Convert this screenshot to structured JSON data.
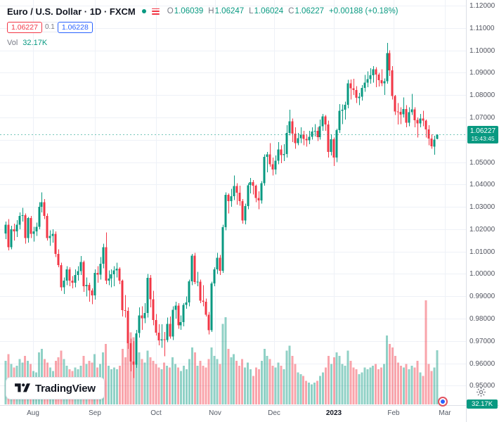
{
  "legend": {
    "title": "Euro / U.S. Dollar · 1D · FXCM",
    "ohlc": {
      "open_label": "O",
      "open": "1.06039",
      "high_label": "H",
      "high": "1.06247",
      "low_label": "L",
      "low": "1.06024",
      "close_label": "C",
      "close": "1.06227",
      "change": "+0.00188 (+0.18%)"
    },
    "bid": "1.06227",
    "spread": "0.1",
    "ask": "1.06228",
    "volume_label": "Vol",
    "volume_value": "32.17K"
  },
  "footer": {
    "brand": "TradingView"
  },
  "colors": {
    "up": "#089981",
    "down": "#f23645",
    "vol_up": "rgba(8,153,129,0.45)",
    "vol_down": "rgba(242,54,69,0.45)",
    "grid": "#eef1f7",
    "axis_text": "#50535e",
    "accent_blue": "#2962ff",
    "accent_red": "#f23645"
  },
  "chart_data": {
    "type": "candlestick",
    "title": "Euro / U.S. Dollar",
    "interval": "1D",
    "exchange": "FXCM",
    "legend_position": "top-left",
    "grid": true,
    "scale": {
      "top": 1.1225,
      "bottom": 0.9426
    },
    "vol_max": 62,
    "last_price": "1.06227",
    "countdown": "15:43:45",
    "volume_axis_value": "32.17K",
    "price_axis_labels": [
      "1.12000",
      "1.11000",
      "1.10000",
      "1.09000",
      "1.08000",
      "1.07000",
      "1.05000",
      "1.04000",
      "1.03000",
      "1.02000",
      "1.01000",
      "1.00000",
      "0.99000",
      "0.98000",
      "0.97000",
      "0.96000",
      "0.95000"
    ],
    "time_axis_ticks": [
      {
        "label": "Aug",
        "pos": 9.85
      },
      {
        "label": "Sep",
        "pos": 32.1
      },
      {
        "label": "Oct",
        "pos": 54.0
      },
      {
        "label": "Nov",
        "pos": 75.3
      },
      {
        "label": "Dec",
        "pos": 96.5
      },
      {
        "label": "2023",
        "pos": 117.9,
        "year": true
      },
      {
        "label": "Feb",
        "pos": 139.4
      },
      {
        "label": "Mar",
        "pos": 157.8
      }
    ],
    "candles": [
      [
        1.018,
        1.0235,
        1.0155,
        1.022,
        26
      ],
      [
        1.022,
        1.0245,
        1.0105,
        1.012,
        30
      ],
      [
        1.012,
        1.0215,
        1.011,
        1.02,
        24
      ],
      [
        1.02,
        1.0225,
        1.015,
        1.019,
        22
      ],
      [
        1.019,
        1.024,
        1.0165,
        1.022,
        23
      ],
      [
        1.022,
        1.0275,
        1.02,
        1.026,
        27
      ],
      [
        1.026,
        1.0295,
        1.0235,
        1.0262,
        25
      ],
      [
        1.0262,
        1.027,
        1.0135,
        1.016,
        29
      ],
      [
        1.016,
        1.0255,
        1.014,
        1.025,
        26
      ],
      [
        1.025,
        1.026,
        1.016,
        1.018,
        24
      ],
      [
        1.018,
        1.021,
        1.0145,
        1.019,
        20
      ],
      [
        1.019,
        1.023,
        1.017,
        1.021,
        19
      ],
      [
        1.021,
        1.032,
        1.02,
        1.03,
        31
      ],
      [
        1.03,
        1.0365,
        1.0275,
        1.032,
        33
      ],
      [
        1.032,
        1.0335,
        1.0245,
        1.026,
        27
      ],
      [
        1.026,
        1.027,
        1.015,
        1.016,
        25
      ],
      [
        1.016,
        1.0195,
        1.0125,
        1.017,
        22
      ],
      [
        1.017,
        1.02,
        1.014,
        1.018,
        20
      ],
      [
        1.018,
        1.019,
        1.0075,
        1.009,
        26
      ],
      [
        1.009,
        1.011,
        1.003,
        1.004,
        28
      ],
      [
        1.004,
        1.005,
        0.9925,
        0.994,
        32
      ],
      [
        0.994,
        0.9985,
        0.991,
        0.997,
        27
      ],
      [
        0.997,
        1.0035,
        0.995,
        1.002,
        23
      ],
      [
        1.002,
        1.003,
        0.9945,
        0.997,
        21
      ],
      [
        0.997,
        0.999,
        0.9935,
        0.996,
        20
      ],
      [
        0.996,
        1.002,
        0.994,
        0.9996,
        22
      ],
      [
        0.9996,
        1.0035,
        0.997,
        1.0012,
        21
      ],
      [
        1.0012,
        1.008,
        0.9995,
        1.0054,
        23
      ],
      [
        1.0054,
        1.006,
        0.992,
        0.9945,
        29
      ],
      [
        0.9945,
        0.9985,
        0.99,
        0.9952,
        24
      ],
      [
        0.9952,
        0.996,
        0.9875,
        0.9926,
        26
      ],
      [
        0.9926,
        0.9935,
        0.9865,
        0.9904,
        25
      ],
      [
        0.9904,
        1.002,
        0.9885,
        1.0005,
        30
      ],
      [
        1.0005,
        1.0035,
        0.996,
        0.9997,
        22
      ],
      [
        0.9997,
        1.0075,
        0.9975,
        1.0045,
        24
      ],
      [
        1.0045,
        1.0135,
        1.0025,
        1.012,
        31
      ],
      [
        1.012,
        1.0185,
        0.9955,
        0.997,
        36
      ],
      [
        0.997,
        1.0015,
        0.995,
        0.9979,
        23
      ],
      [
        0.9979,
        1.002,
        0.994,
        0.9998,
        21
      ],
      [
        0.9998,
        1.0035,
        0.9945,
        1.0016,
        22
      ],
      [
        1.0016,
        1.005,
        0.9985,
        1.0023,
        21
      ],
      [
        1.0023,
        1.003,
        0.9955,
        0.997,
        23
      ],
      [
        0.997,
        0.9975,
        0.981,
        0.9838,
        33
      ],
      [
        0.9838,
        0.9905,
        0.9805,
        0.9835,
        28
      ],
      [
        0.9835,
        0.985,
        0.9665,
        0.969,
        38
      ],
      [
        0.969,
        0.971,
        0.9565,
        0.9609,
        43
      ],
      [
        0.9609,
        0.97,
        0.9535,
        0.9594,
        40
      ],
      [
        0.9594,
        0.975,
        0.958,
        0.9735,
        34
      ],
      [
        0.9735,
        0.985,
        0.9715,
        0.9815,
        31
      ],
      [
        0.9815,
        0.9855,
        0.975,
        0.9802,
        27
      ],
      [
        0.9802,
        0.987,
        0.978,
        0.9826,
        25
      ],
      [
        0.9826,
        1.0,
        0.9805,
        0.9983,
        32
      ],
      [
        0.9983,
        0.9995,
        0.985,
        0.9886,
        28
      ],
      [
        0.9886,
        0.9925,
        0.977,
        0.9794,
        26
      ],
      [
        0.9794,
        0.982,
        0.9725,
        0.9737,
        24
      ],
      [
        0.9737,
        0.9775,
        0.968,
        0.9703,
        22
      ],
      [
        0.9703,
        0.9775,
        0.967,
        0.9707,
        21
      ],
      [
        0.9707,
        0.974,
        0.9632,
        0.9704,
        25
      ],
      [
        0.9704,
        0.9805,
        0.9695,
        0.9777,
        23
      ],
      [
        0.9777,
        0.981,
        0.971,
        0.972,
        22
      ],
      [
        0.972,
        0.9855,
        0.9705,
        0.984,
        28
      ],
      [
        0.984,
        0.9875,
        0.98,
        0.9858,
        24
      ],
      [
        0.9858,
        0.987,
        0.9755,
        0.9771,
        22
      ],
      [
        0.9771,
        0.9815,
        0.975,
        0.9785,
        20
      ],
      [
        0.9785,
        0.987,
        0.9765,
        0.9861,
        23
      ],
      [
        0.9861,
        0.9899,
        0.9845,
        0.9873,
        21
      ],
      [
        0.9873,
        0.9975,
        0.9855,
        0.9967,
        27
      ],
      [
        0.9967,
        1.009,
        0.995,
        1.0082,
        34
      ],
      [
        1.0082,
        1.0095,
        0.9955,
        0.9963,
        31
      ],
      [
        0.9963,
        1.001,
        0.9945,
        0.9965,
        23
      ],
      [
        0.9965,
        0.9975,
        0.987,
        0.9881,
        26
      ],
      [
        0.9881,
        0.995,
        0.9855,
        0.9876,
        23
      ],
      [
        0.9876,
        0.989,
        0.981,
        0.9817,
        22
      ],
      [
        0.9817,
        0.983,
        0.973,
        0.9749,
        27
      ],
      [
        0.9749,
        0.9965,
        0.974,
        0.9958,
        34
      ],
      [
        0.9958,
        1.003,
        0.9945,
        1.002,
        29
      ],
      [
        1.002,
        1.0095,
        1.0,
        1.0073,
        27
      ],
      [
        1.0073,
        1.0085,
        0.9995,
        1.0014,
        24
      ],
      [
        1.0014,
        1.022,
        1.0005,
        1.0209,
        48
      ],
      [
        1.0209,
        1.0365,
        1.0195,
        1.0354,
        52
      ],
      [
        1.0354,
        1.036,
        1.027,
        1.0325,
        33
      ],
      [
        1.0325,
        1.038,
        1.03,
        1.0348,
        28
      ],
      [
        1.0348,
        1.044,
        1.033,
        1.0393,
        30
      ],
      [
        1.0393,
        1.0405,
        1.031,
        1.0363,
        26
      ],
      [
        1.0363,
        1.0395,
        1.0305,
        1.0325,
        23
      ],
      [
        1.0325,
        1.0335,
        1.0225,
        1.0239,
        27
      ],
      [
        1.0239,
        1.0315,
        1.0222,
        1.0303,
        22
      ],
      [
        1.0303,
        1.0405,
        1.029,
        1.0397,
        25
      ],
      [
        1.0397,
        1.043,
        1.036,
        1.041,
        21
      ],
      [
        1.041,
        1.042,
        1.0355,
        1.0395,
        17
      ],
      [
        1.0395,
        1.04,
        1.032,
        1.034,
        22
      ],
      [
        1.034,
        1.037,
        1.029,
        1.0329,
        21
      ],
      [
        1.0329,
        1.0415,
        1.0315,
        1.0406,
        26
      ],
      [
        1.0406,
        1.0535,
        1.0395,
        1.0524,
        33
      ],
      [
        1.0524,
        1.0545,
        1.0455,
        1.0535,
        29
      ],
      [
        1.0535,
        1.0585,
        1.048,
        1.049,
        27
      ],
      [
        1.049,
        1.052,
        1.044,
        1.0467,
        23
      ],
      [
        1.0467,
        1.053,
        1.0445,
        1.0506,
        22
      ],
      [
        1.0506,
        1.059,
        1.049,
        1.0557,
        25
      ],
      [
        1.0557,
        1.0575,
        1.0495,
        1.0531,
        23
      ],
      [
        1.0531,
        1.058,
        1.0505,
        1.0537,
        21
      ],
      [
        1.0537,
        1.0665,
        1.052,
        1.0631,
        32
      ],
      [
        1.0631,
        1.0735,
        1.062,
        1.0682,
        35
      ],
      [
        1.0682,
        1.0695,
        1.059,
        1.0628,
        29
      ],
      [
        1.0628,
        1.0655,
        1.056,
        1.0585,
        24
      ],
      [
        1.0585,
        1.063,
        1.0575,
        1.0607,
        19
      ],
      [
        1.0607,
        1.0655,
        1.0585,
        1.0622,
        18
      ],
      [
        1.0622,
        1.064,
        1.0575,
        1.0604,
        17
      ],
      [
        1.0604,
        1.0625,
        1.057,
        1.0598,
        14
      ],
      [
        1.0598,
        1.064,
        1.058,
        1.0614,
        13
      ],
      [
        1.0614,
        1.0655,
        1.06,
        1.0637,
        12
      ],
      [
        1.0637,
        1.067,
        1.0615,
        1.064,
        13
      ],
      [
        1.064,
        1.0655,
        1.0595,
        1.0611,
        14
      ],
      [
        1.0611,
        1.069,
        1.06,
        1.0661,
        17
      ],
      [
        1.0661,
        1.0715,
        1.064,
        1.0705,
        19
      ],
      [
        1.0705,
        1.071,
        1.064,
        1.0668,
        22
      ],
      [
        1.0668,
        1.0685,
        1.052,
        1.0546,
        29
      ],
      [
        1.0546,
        1.0625,
        1.053,
        1.0602,
        24
      ],
      [
        1.0602,
        1.061,
        1.0483,
        1.0521,
        28
      ],
      [
        1.0521,
        1.065,
        1.05,
        1.0643,
        31
      ],
      [
        1.0643,
        1.076,
        1.063,
        1.073,
        29
      ],
      [
        1.073,
        1.0758,
        1.067,
        1.0734,
        24
      ],
      [
        1.0734,
        1.077,
        1.069,
        1.0756,
        23
      ],
      [
        1.0756,
        1.0868,
        1.074,
        1.0852,
        32
      ],
      [
        1.0852,
        1.087,
        1.078,
        1.083,
        26
      ],
      [
        1.083,
        1.0872,
        1.08,
        1.0823,
        22
      ],
      [
        1.0823,
        1.084,
        1.0765,
        1.0787,
        21
      ],
      [
        1.0787,
        1.081,
        1.0755,
        1.0793,
        18
      ],
      [
        1.0793,
        1.0845,
        1.0775,
        1.0832,
        19
      ],
      [
        1.0832,
        1.089,
        1.0815,
        1.0856,
        22
      ],
      [
        1.0856,
        1.0905,
        1.0835,
        1.0871,
        21
      ],
      [
        1.0871,
        1.092,
        1.085,
        1.0888,
        22
      ],
      [
        1.0888,
        1.093,
        1.0855,
        1.0915,
        23
      ],
      [
        1.0915,
        1.0925,
        1.0835,
        1.0892,
        24
      ],
      [
        1.0892,
        1.09,
        1.0838,
        1.0867,
        21
      ],
      [
        1.0867,
        1.0915,
        1.084,
        1.0852,
        22
      ],
      [
        1.0852,
        1.0875,
        1.08,
        1.0862,
        24
      ],
      [
        1.0862,
        1.1033,
        1.085,
        1.0988,
        41
      ],
      [
        1.0988,
        1.1,
        1.0885,
        1.0911,
        36
      ],
      [
        1.0911,
        1.093,
        1.078,
        1.0795,
        34
      ],
      [
        1.0795,
        1.08,
        1.071,
        1.0726,
        29
      ],
      [
        1.0726,
        1.0765,
        1.0669,
        1.0725,
        25
      ],
      [
        1.0725,
        1.0745,
        1.067,
        1.0713,
        23
      ],
      [
        1.0713,
        1.079,
        1.07,
        1.0738,
        22
      ],
      [
        1.0738,
        1.0755,
        1.0655,
        1.0676,
        24
      ],
      [
        1.0676,
        1.0745,
        1.066,
        1.0724,
        21
      ],
      [
        1.0724,
        1.0805,
        1.071,
        1.0736,
        23
      ],
      [
        1.0736,
        1.0745,
        1.0655,
        1.0688,
        22
      ],
      [
        1.0688,
        1.07,
        1.061,
        1.0673,
        26
      ],
      [
        1.0673,
        1.0715,
        1.0655,
        1.0695,
        19
      ],
      [
        1.0695,
        1.073,
        1.066,
        1.0686,
        17
      ],
      [
        1.0686,
        1.069,
        1.061,
        1.0647,
        62
      ],
      [
        1.0647,
        1.0665,
        1.0575,
        1.0605,
        24
      ],
      [
        1.0605,
        1.0625,
        1.056,
        1.057,
        20
      ],
      [
        1.057,
        1.0618,
        1.0533,
        1.0601,
        22
      ],
      [
        1.06039,
        1.06247,
        1.06024,
        1.06227,
        32.17
      ]
    ]
  }
}
